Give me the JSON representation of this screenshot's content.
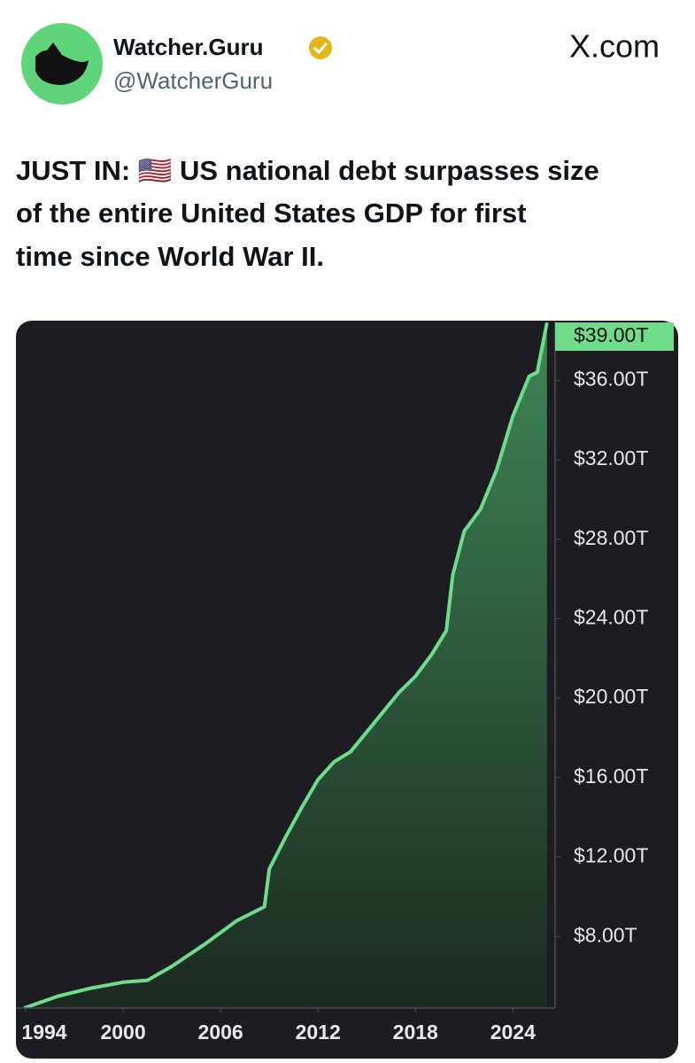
{
  "header": {
    "name": "Watcher.Guru",
    "handle": "@WatcherGuru",
    "site": "X.com"
  },
  "tweet": {
    "lines": [
      "JUST IN: 🇺🇸 US national debt surpasses size",
      "of the entire United States GDP for first",
      "time since World War II."
    ]
  },
  "chart_data": {
    "type": "area",
    "x": [
      1993.9,
      1996,
      1998,
      2000,
      2001.5,
      2003,
      2005,
      2007,
      2008.7,
      2009,
      2010,
      2011,
      2012,
      2013,
      2014,
      2015,
      2016,
      2017,
      2018,
      2019,
      2019.9,
      2020.3,
      2021,
      2022,
      2023,
      2024,
      2025,
      2025.5,
      2026.1
    ],
    "values": [
      4.4,
      5.0,
      5.4,
      5.7,
      5.8,
      6.5,
      7.6,
      8.8,
      9.5,
      11.4,
      13.0,
      14.5,
      15.9,
      16.8,
      17.3,
      18.3,
      19.3,
      20.3,
      21.1,
      22.2,
      23.4,
      26.2,
      28.4,
      29.5,
      31.5,
      34.2,
      36.2,
      36.4,
      38.9
    ],
    "color": "#6fdc8c",
    "xlim": [
      1993.4,
      2026.6
    ],
    "xticks": [
      1994,
      2000,
      2006,
      2012,
      2018,
      2024
    ],
    "ylim": [
      4.4,
      39.0
    ],
    "yticks": [
      {
        "value": 8,
        "label": "$8.00T"
      },
      {
        "value": 12,
        "label": "$12.00T"
      },
      {
        "value": 16,
        "label": "$16.00T"
      },
      {
        "value": 20,
        "label": "$20.00T"
      },
      {
        "value": 24,
        "label": "$24.00T"
      },
      {
        "value": 28,
        "label": "$28.00T"
      },
      {
        "value": 32,
        "label": "$32.00T"
      },
      {
        "value": 36,
        "label": "$36.00T"
      }
    ],
    "current_value": {
      "value": 39,
      "label": "$39.00T"
    }
  }
}
